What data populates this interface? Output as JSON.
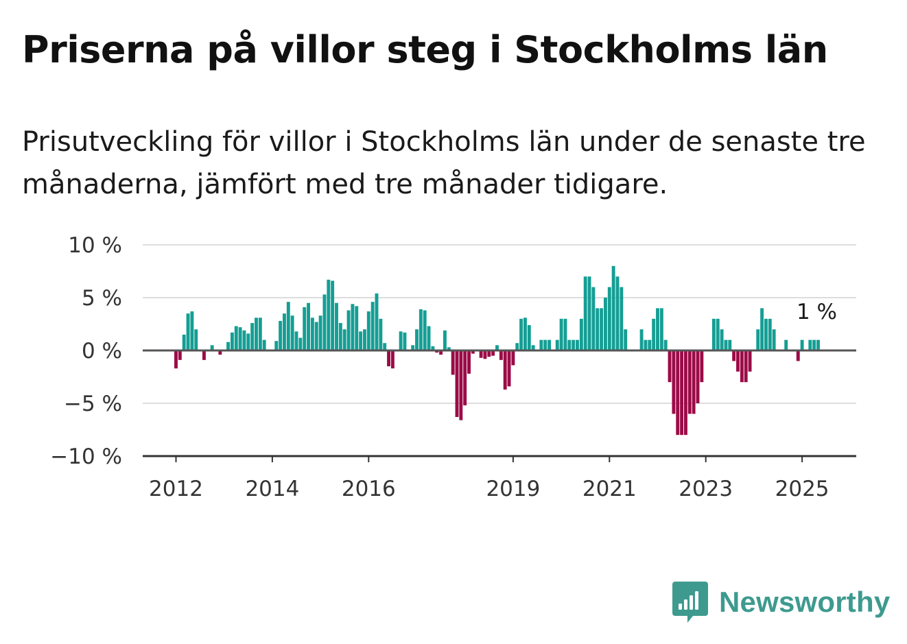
{
  "title": "Priserna på villor steg i Stockholms län",
  "subtitle": "Prisutveckling för villor i Stockholms län under de senaste tre månaderna, jämfört med tre månader tidigare.",
  "brand": {
    "name": "Newsworthy",
    "icon": "newsworthy-logo-icon",
    "color": "#3e9a8f"
  },
  "chart_data": {
    "type": "bar",
    "title": "Priserna på villor steg i Stockholms län",
    "subtitle": "Prisutveckling för villor i Stockholms län under de senaste tre månaderna, jämfört med tre månader tidigare.",
    "xlabel": "",
    "ylabel": "",
    "x_start": "2012-01",
    "frequency": "monthly",
    "ylim": [
      -10,
      10
    ],
    "y_ticks": [
      10,
      5,
      0,
      -5,
      -10
    ],
    "y_tick_labels": [
      "10 %",
      "5 %",
      "0 %",
      "−5 %",
      "−10 %"
    ],
    "x_ticks": [
      "2012-01",
      "2014-01",
      "2016-01",
      "2019-01",
      "2021-01",
      "2023-01",
      "2025-01"
    ],
    "x_tick_labels": [
      "2012",
      "2014",
      "2016",
      "2019",
      "2021",
      "2023",
      "2025"
    ],
    "grid": true,
    "colors": {
      "positive": "#159e94",
      "negative": "#9b0b47",
      "zero_line": "#555555",
      "grid": "#dddddd"
    },
    "last_value_label": "1 %",
    "categories": [
      "2012-01",
      "2012-02",
      "2012-03",
      "2012-04",
      "2012-05",
      "2012-06",
      "2012-07",
      "2012-08",
      "2012-09",
      "2012-10",
      "2012-11",
      "2012-12",
      "2013-01",
      "2013-02",
      "2013-03",
      "2013-04",
      "2013-05",
      "2013-06",
      "2013-07",
      "2013-08",
      "2013-09",
      "2013-10",
      "2013-11",
      "2013-12",
      "2014-01",
      "2014-02",
      "2014-03",
      "2014-04",
      "2014-05",
      "2014-06",
      "2014-07",
      "2014-08",
      "2014-09",
      "2014-10",
      "2014-11",
      "2014-12",
      "2015-01",
      "2015-02",
      "2015-03",
      "2015-04",
      "2015-05",
      "2015-06",
      "2015-07",
      "2015-08",
      "2015-09",
      "2015-10",
      "2015-11",
      "2015-12",
      "2016-01",
      "2016-02",
      "2016-03",
      "2016-04",
      "2016-05",
      "2016-06",
      "2016-07",
      "2016-08",
      "2016-09",
      "2016-10",
      "2016-11",
      "2016-12",
      "2017-01",
      "2017-02",
      "2017-03",
      "2017-04",
      "2017-05",
      "2017-06",
      "2017-07",
      "2017-08",
      "2017-09",
      "2017-10",
      "2017-11",
      "2017-12",
      "2018-01",
      "2018-02",
      "2018-03",
      "2018-04",
      "2018-05",
      "2018-06",
      "2018-07",
      "2018-08",
      "2018-09",
      "2018-10",
      "2018-11",
      "2018-12",
      "2019-01",
      "2019-02",
      "2019-03",
      "2019-04",
      "2019-05",
      "2019-06",
      "2019-07",
      "2019-08",
      "2019-09",
      "2019-10",
      "2019-11",
      "2019-12",
      "2020-01",
      "2020-02",
      "2020-03",
      "2020-04",
      "2020-05",
      "2020-06",
      "2020-07",
      "2020-08",
      "2020-09",
      "2020-10",
      "2020-11",
      "2020-12",
      "2021-01",
      "2021-02",
      "2021-03",
      "2021-04",
      "2021-05",
      "2021-06",
      "2021-07",
      "2021-08",
      "2021-09",
      "2021-10",
      "2021-11",
      "2021-12",
      "2022-01",
      "2022-02",
      "2022-03",
      "2022-04",
      "2022-05",
      "2022-06",
      "2022-07",
      "2022-08",
      "2022-09",
      "2022-10",
      "2022-11",
      "2022-12",
      "2023-01",
      "2023-02",
      "2023-03",
      "2023-04",
      "2023-05",
      "2023-06",
      "2023-07",
      "2023-08",
      "2023-09",
      "2023-10",
      "2023-11",
      "2023-12",
      "2024-01",
      "2024-02",
      "2024-03",
      "2024-04",
      "2024-05",
      "2024-06",
      "2024-07",
      "2024-08",
      "2024-09",
      "2024-10",
      "2024-11",
      "2024-12",
      "2025-01",
      "2025-02",
      "2025-03",
      "2025-04",
      "2025-05"
    ],
    "values": [
      -1.7,
      -0.9,
      1.5,
      3.5,
      3.7,
      2.0,
      0,
      -0.9,
      0,
      0.5,
      0,
      -0.4,
      0,
      0.8,
      1.7,
      2.3,
      2.2,
      1.9,
      1.6,
      2.6,
      3.1,
      3.1,
      1.0,
      0,
      0,
      0.9,
      2.8,
      3.5,
      4.6,
      3.3,
      1.8,
      1.2,
      4.1,
      4.5,
      3.1,
      2.7,
      3.3,
      5.3,
      6.7,
      6.6,
      4.5,
      2.6,
      2.0,
      3.8,
      4.4,
      4.2,
      1.8,
      2.0,
      3.7,
      4.6,
      5.4,
      3.0,
      0.7,
      -1.5,
      -1.7,
      0,
      1.8,
      1.7,
      0,
      0.5,
      2.0,
      3.9,
      3.8,
      2.3,
      0.4,
      -0.2,
      -0.4,
      1.9,
      0.3,
      -2.3,
      -6.3,
      -6.6,
      -5.2,
      -2.2,
      -0.3,
      0,
      -0.7,
      -0.8,
      -0.6,
      -0.5,
      0.5,
      -0.9,
      -3.7,
      -3.4,
      -1.4,
      0.7,
      3.0,
      3.1,
      2.4,
      0.5,
      0,
      1.0,
      1.0,
      1.0,
      0,
      1.0,
      3.0,
      3.0,
      1.0,
      1.0,
      1.0,
      3.0,
      7.0,
      7.0,
      6.0,
      4.0,
      4.0,
      5.0,
      6.0,
      8.0,
      7.0,
      6.0,
      2.0,
      0,
      0,
      0,
      2.0,
      1.0,
      1.0,
      3.0,
      4.0,
      4.0,
      1.0,
      -3.0,
      -6.0,
      -8.0,
      -8.0,
      -8.0,
      -6.0,
      -6.0,
      -5.0,
      -3.0,
      0,
      0,
      3.0,
      3.0,
      2.0,
      1.0,
      1.0,
      -1.0,
      -2.0,
      -3.0,
      -3.0,
      -2.0,
      0,
      2.0,
      4.0,
      3.0,
      3.0,
      2.0,
      0,
      0,
      1.0,
      0,
      0,
      -1.0,
      1.0,
      0,
      1.0,
      1.0,
      1.0
    ]
  }
}
